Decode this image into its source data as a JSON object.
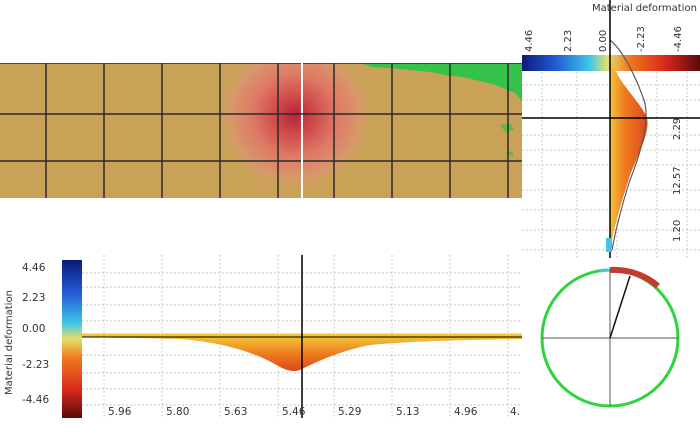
{
  "colors": {
    "material": "#c9a257",
    "grid": "#2a2a2a",
    "deformation_red": "#c43a2e",
    "deformation_orange": "#ef7a1e",
    "deformation_yellow": "#f3c338",
    "crack_green": "#34c24a",
    "circle_green": "#2fd33c",
    "legend_dark_blue": "#0a1a7c",
    "legend_dark_red": "#5a0a0a"
  },
  "right_panel": {
    "title": "Material deformation",
    "scale_labels": [
      "4.46",
      "2.23",
      "0.00",
      "-2.23",
      "-4.46"
    ],
    "axis_labels": [
      "2.29",
      "12.57",
      "1.20"
    ]
  },
  "bottom_panel": {
    "ylabel": "Material deformation",
    "scale_labels": [
      "4.46",
      "2.23",
      "0.00",
      "-2.23",
      "-4.46"
    ],
    "axis_labels": [
      "5.96",
      "5.80",
      "5.63",
      "5.46",
      "5.29",
      "5.13",
      "4.96",
      "4."
    ]
  },
  "circle_panel": {
    "indicator": "deformation-circle"
  }
}
